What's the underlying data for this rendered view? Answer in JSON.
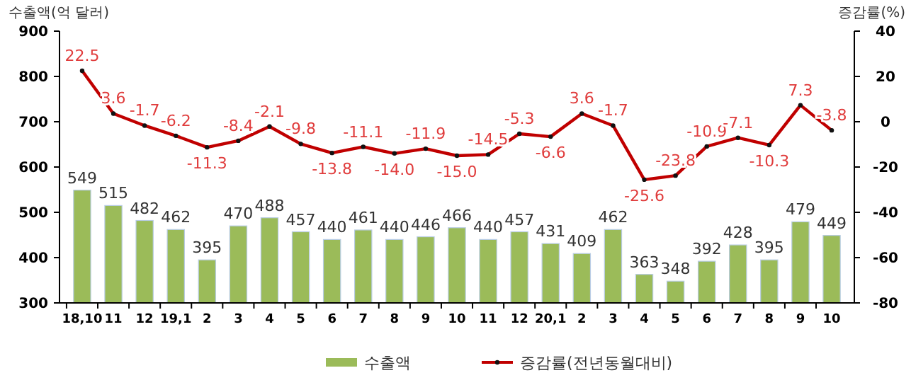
{
  "chart_data": {
    "type": "bar",
    "ylabel": "수출액(억 달러)",
    "y2label": "증감률(%)",
    "categories": [
      "18,10",
      "11",
      "12",
      "19,1",
      "2",
      "3",
      "4",
      "5",
      "6",
      "7",
      "8",
      "9",
      "10",
      "11",
      "12",
      "20,1",
      "2",
      "3",
      "4",
      "5",
      "6",
      "7",
      "8",
      "9",
      "10"
    ],
    "series": [
      {
        "name": "수출액",
        "color": "#9bbb59",
        "values": [
          549,
          515,
          482,
          462,
          395,
          470,
          488,
          457,
          440,
          461,
          440,
          446,
          466,
          440,
          457,
          431,
          409,
          462,
          363,
          348,
          392,
          428,
          395,
          479,
          449
        ]
      },
      {
        "name": "증감률(전년동월대비)",
        "type": "line",
        "axis": "y2",
        "color": "#c00000",
        "marker": "circle",
        "values": [
          22.5,
          3.6,
          -1.7,
          -6.2,
          -11.3,
          -8.4,
          -2.1,
          -9.8,
          -13.8,
          -11.1,
          -14.0,
          -11.9,
          -15.0,
          -14.5,
          -5.3,
          -6.6,
          3.6,
          -1.7,
          -25.6,
          -23.8,
          -10.9,
          -7.1,
          -10.3,
          7.3,
          -3.8
        ],
        "value_labels": [
          "22.5",
          "3.6",
          "-1.7",
          "-6.2",
          "-11.3",
          "-8.4",
          "-2.1",
          "-9.8",
          "-13.8",
          "-11.1",
          "-14.0",
          "-11.9",
          "-15.0",
          "-14.5",
          "-5.3",
          "-6.6",
          "3.6",
          "-1.7",
          "-25.6",
          "-23.8",
          "-10.9",
          "-7.1",
          "-10.3",
          "7.3",
          "-3.8"
        ]
      }
    ],
    "ylim": [
      300,
      900
    ],
    "yticks": [
      300,
      400,
      500,
      600,
      700,
      800,
      900
    ],
    "y2lim": [
      -80,
      40
    ],
    "y2ticks": [
      -80,
      -60,
      -40,
      -20,
      0,
      20,
      40
    ],
    "data_labels": true,
    "legend": "bottom",
    "grid": false
  }
}
